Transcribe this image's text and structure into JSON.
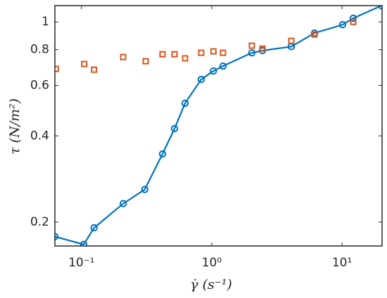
{
  "chart_data": {
    "type": "scatter",
    "xlabel": "γ̇ (s⁻¹)",
    "ylabel": "τ (N/m²)",
    "xscale": "log",
    "yscale": "log",
    "xlim": [
      0.0625,
      20.3
    ],
    "ylim": [
      0.165,
      1.14
    ],
    "xticks": [
      {
        "value": 0.1,
        "label": "10⁻¹"
      },
      {
        "value": 1,
        "label": "10⁰"
      },
      {
        "value": 10,
        "label": "10¹"
      }
    ],
    "yticks": [
      0.2,
      0.4,
      0.6,
      0.8,
      1
    ],
    "series": [
      {
        "color": "#0072bd",
        "marker": "circle",
        "line": true,
        "x": [
          0.0625,
          0.104,
          0.125,
          0.209,
          0.306,
          0.419,
          0.518,
          0.624,
          0.83,
          1.03,
          1.22,
          2.03,
          2.45,
          4.08,
          6.15,
          10.1,
          12.2,
          20.1
        ],
        "values": [
          0.178,
          0.167,
          0.191,
          0.232,
          0.26,
          0.346,
          0.424,
          0.52,
          0.63,
          0.674,
          0.701,
          0.78,
          0.794,
          0.82,
          0.914,
          0.978,
          1.03,
          1.14
        ]
      },
      {
        "color": "#d95319",
        "marker": "square",
        "line": false,
        "x": [
          0.0635,
          0.105,
          0.125,
          0.209,
          0.311,
          0.419,
          0.518,
          0.624,
          0.83,
          1.03,
          1.22,
          2.03,
          2.45,
          4.08,
          6.15,
          12.2
        ],
        "values": [
          0.685,
          0.713,
          0.681,
          0.754,
          0.729,
          0.771,
          0.771,
          0.746,
          0.78,
          0.789,
          0.78,
          0.826,
          0.807,
          0.859,
          0.904,
          1.0
        ]
      }
    ]
  }
}
